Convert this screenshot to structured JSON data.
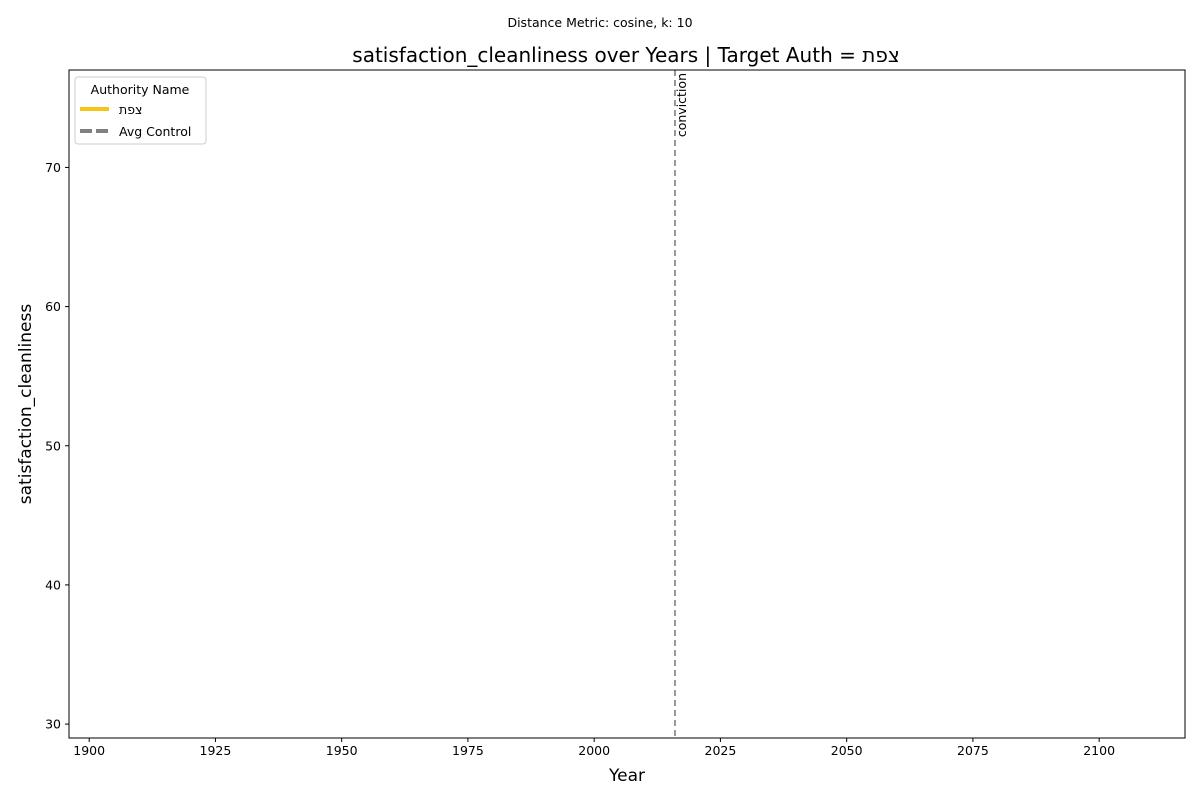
{
  "chart_data": {
    "type": "line",
    "suptitle": "Distance Metric: cosine, k: 10",
    "title": "satisfaction_cleanliness over Years | Target Auth = צפת",
    "xlabel": "Year",
    "ylabel": "satisfaction_cleanliness",
    "xlim": [
      1896,
      2117
    ],
    "ylim": [
      29,
      77
    ],
    "xticks": [
      1900,
      1925,
      1950,
      1975,
      2000,
      2025,
      2050,
      2075,
      2100
    ],
    "yticks": [
      30,
      40,
      50,
      60,
      70
    ],
    "grid": false,
    "series": [
      {
        "name": "צפת",
        "color": "#f5c518",
        "style": "solid",
        "x": [],
        "y": []
      },
      {
        "name": "Avg Control",
        "color": "#808080",
        "style": "dashed",
        "x": [],
        "y": []
      }
    ],
    "legend": {
      "title": "Authority Name",
      "placement": "top-left"
    },
    "annotations": [
      {
        "type": "vline",
        "x": 2016,
        "label": "conviction",
        "color": "#777777",
        "style": "dashed"
      }
    ]
  }
}
